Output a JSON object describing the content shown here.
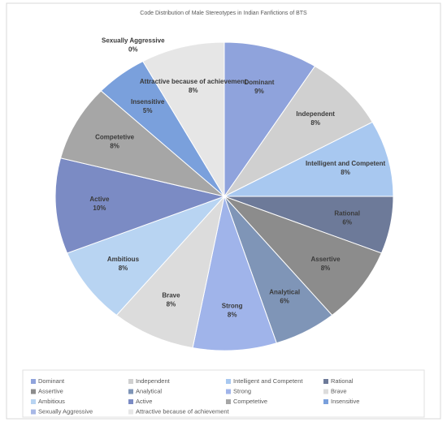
{
  "chart_data": {
    "type": "pie",
    "title": "Code Distribution of Male Stereotypes in Indian Fanfictions of BTS",
    "categories": [
      "Dominant",
      "Independent",
      "Intelligent and Competent",
      "Rational",
      "Assertive",
      "Analytical",
      "Strong",
      "Brave",
      "Ambitious",
      "Active",
      "Competetive",
      "Insensitive",
      "Sexually Aggressive",
      "Attractive because of achievement"
    ],
    "values": [
      9,
      8,
      8,
      6,
      8,
      6,
      8,
      8,
      8,
      10,
      8,
      5,
      0,
      8
    ],
    "value_labels": [
      "9%",
      "8%",
      "8%",
      "6%",
      "8%",
      "6%",
      "8%",
      "8%",
      "8%",
      "10%",
      "8%",
      "5%",
      "0%",
      "8%"
    ],
    "colors": [
      "#8fa3dc",
      "#d0d0d0",
      "#a8c8f0",
      "#6d7a99",
      "#8c8c8c",
      "#7f95b7",
      "#a0b4ea",
      "#dcdcdc",
      "#b8d4f2",
      "#7b8bc4",
      "#a6a6a6",
      "#7aa0dc",
      "#a8b8e6",
      "#e6e6e6"
    ],
    "legend": "bottom"
  }
}
